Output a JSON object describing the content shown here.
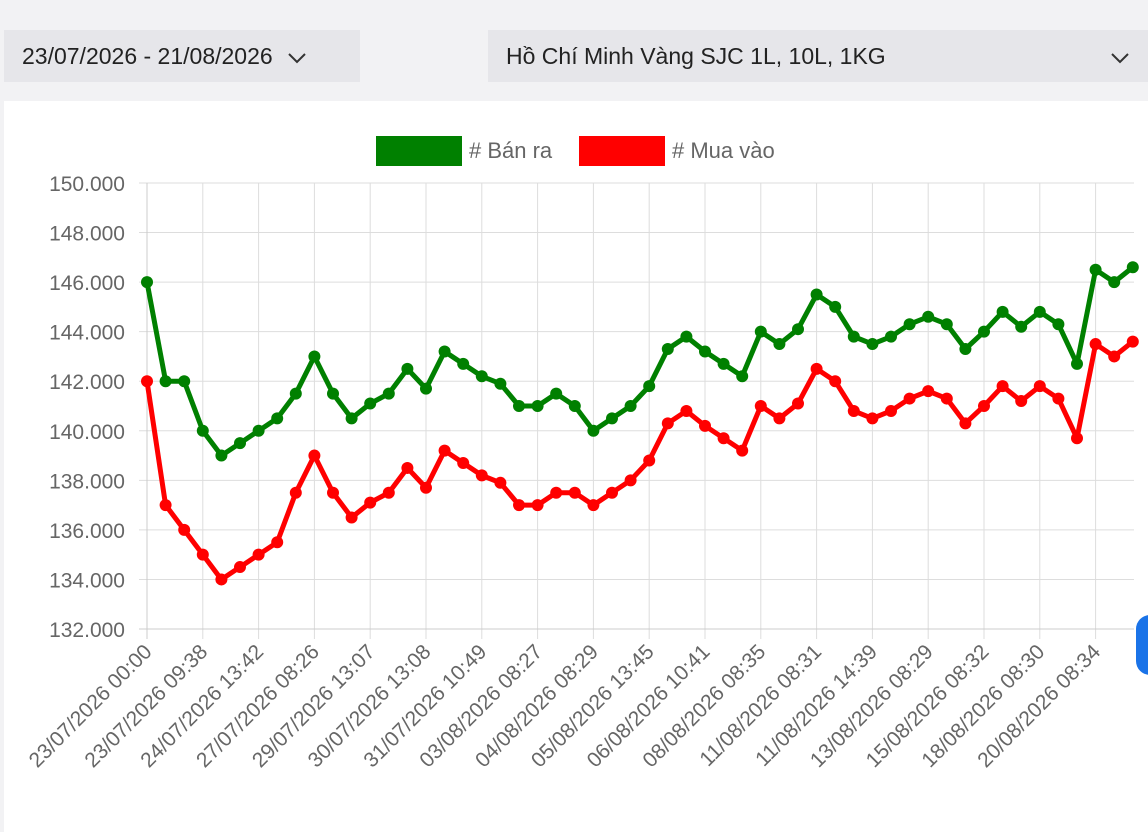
{
  "filters": {
    "date_range": "23/07/2026 - 21/08/2026",
    "location_product": "Hồ Chí Minh Vàng SJC 1L, 10L, 1KG"
  },
  "chart_data": {
    "type": "line",
    "title": "",
    "xlabel": "",
    "ylabel": "",
    "ylim": [
      132000,
      150000
    ],
    "y_ticks": [
      132000,
      134000,
      136000,
      138000,
      140000,
      142000,
      144000,
      146000,
      148000,
      150000
    ],
    "y_tick_labels": [
      "132.000",
      "134.000",
      "136.000",
      "138.000",
      "140.000",
      "142.000",
      "144.000",
      "146.000",
      "148.000",
      "150.000"
    ],
    "x_tick_labels": [
      "23/07/2026 00:00",
      "23/07/2026 09:38",
      "24/07/2026 13:42",
      "27/07/2026 08:26",
      "29/07/2026 13:07",
      "30/07/2026 13:08",
      "31/07/2026 10:49",
      "03/08/2026 08:27",
      "04/08/2026 08:29",
      "05/08/2026 13:45",
      "06/08/2026 10:41",
      "08/08/2026 08:35",
      "11/08/2026 08:31",
      "11/08/2026 14:39",
      "13/08/2026 08:29",
      "15/08/2026 08:32",
      "18/08/2026 08:30",
      "20/08/2026 08:34"
    ],
    "grid": true,
    "legend_position": "top",
    "series": [
      {
        "name": "# Bán ra",
        "color": "#008000",
        "values": [
          146000,
          142000,
          142000,
          140000,
          139000,
          139500,
          140000,
          140500,
          141500,
          143000,
          141500,
          140500,
          141100,
          141500,
          142500,
          141700,
          143200,
          142700,
          142200,
          141900,
          141000,
          141000,
          141500,
          141000,
          140000,
          140500,
          141000,
          141800,
          143300,
          143800,
          143200,
          142700,
          142200,
          144000,
          143500,
          144100,
          145500,
          145000,
          143800,
          143500,
          143800,
          144300,
          144600,
          144300,
          143300,
          144000,
          144800,
          144200,
          144800,
          144300,
          142700,
          146500,
          146000,
          146600
        ]
      },
      {
        "name": "# Mua vào",
        "color": "#ff0000",
        "values": [
          142000,
          137000,
          136000,
          135000,
          134000,
          134500,
          135000,
          135500,
          137500,
          139000,
          137500,
          136500,
          137100,
          137500,
          138500,
          137700,
          139200,
          138700,
          138200,
          137900,
          137000,
          137000,
          137500,
          137500,
          137000,
          137500,
          138000,
          138800,
          140300,
          140800,
          140200,
          139700,
          139200,
          141000,
          140500,
          141100,
          142500,
          142000,
          140800,
          140500,
          140800,
          141300,
          141600,
          141300,
          140300,
          141000,
          141800,
          141200,
          141800,
          141300,
          139700,
          143500,
          143000,
          143600
        ]
      }
    ]
  }
}
